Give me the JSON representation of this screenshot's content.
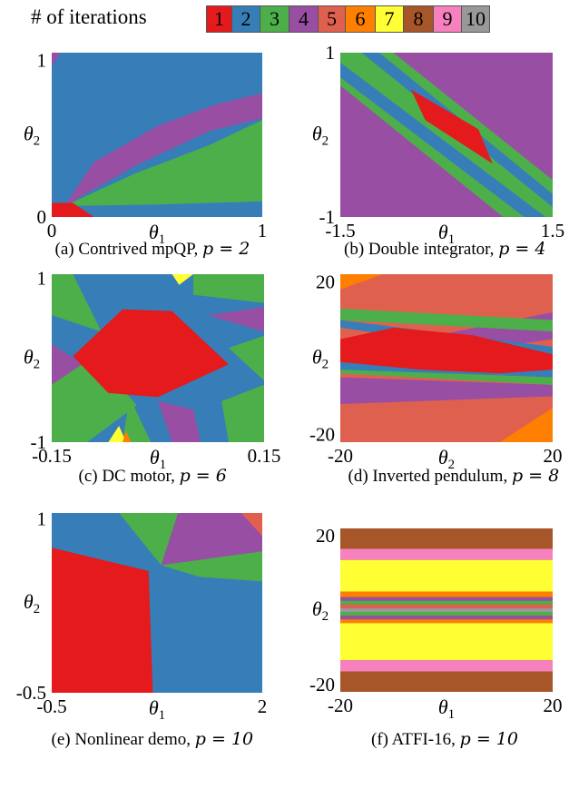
{
  "legend": {
    "title": "# of iterations",
    "items": [
      {
        "label": "1",
        "color": "#e41a1c"
      },
      {
        "label": "2",
        "color": "#377eb8"
      },
      {
        "label": "3",
        "color": "#4daf4a"
      },
      {
        "label": "4",
        "color": "#984ea3"
      },
      {
        "label": "5",
        "color": "#e0604f"
      },
      {
        "label": "6",
        "color": "#ff7f00"
      },
      {
        "label": "7",
        "color": "#ffff33"
      },
      {
        "label": "8",
        "color": "#a65628"
      },
      {
        "label": "9",
        "color": "#f781bf"
      },
      {
        "label": "10",
        "color": "#999999"
      }
    ]
  },
  "chart_data": [
    {
      "type": "heatmap",
      "caption": "(a) Contrived mpQP, ",
      "caption_math": "p = 2",
      "xlabel": "θ1",
      "ylabel": "θ2",
      "xlim": [
        0,
        1
      ],
      "ylim": [
        0,
        1.05
      ],
      "xticks": [
        "0",
        "1"
      ],
      "xtick_values": [
        0,
        1
      ],
      "yticks": [
        "0",
        "1"
      ],
      "ytick_values": [
        0,
        1
      ],
      "background": 2,
      "regions": [
        {
          "iterations": 4,
          "points": [
            [
              0.06,
              0.07
            ],
            [
              0.2,
              0.35
            ],
            [
              0.5,
              0.58
            ],
            [
              0.78,
              0.72
            ],
            [
              1.0,
              0.79
            ],
            [
              1.0,
              0.63
            ],
            [
              0.75,
              0.55
            ],
            [
              0.4,
              0.33
            ]
          ]
        },
        {
          "iterations": 3,
          "points": [
            [
              0.06,
              0.07
            ],
            [
              0.4,
              0.28
            ],
            [
              0.75,
              0.46
            ],
            [
              1.0,
              0.62
            ],
            [
              1.0,
              0.1
            ],
            [
              0.5,
              0.08
            ]
          ]
        },
        {
          "iterations": 1,
          "points": [
            [
              0,
              0
            ],
            [
              0.2,
              0
            ],
            [
              0.1,
              0.09
            ],
            [
              0,
              0.09
            ]
          ]
        },
        {
          "iterations": 4,
          "points": [
            [
              0,
              0.96
            ],
            [
              0.04,
              1.05
            ],
            [
              0,
              1.05
            ]
          ]
        }
      ]
    },
    {
      "type": "heatmap",
      "caption": "(b) Double integrator, ",
      "caption_math": "p = 4",
      "xlabel": "θ1",
      "ylabel": "θ2",
      "xlim": [
        -1.5,
        1.5
      ],
      "ylim": [
        -1,
        1
      ],
      "xticks": [
        "-1.5",
        "1.5"
      ],
      "xtick_values": [
        -1.5,
        1.5
      ],
      "yticks": [
        "1",
        "-1"
      ],
      "ytick_values": [
        1,
        -1
      ],
      "background": 4,
      "regions": [
        {
          "iterations": 3,
          "points": [
            [
              -1.5,
              1
            ],
            [
              -0.75,
              1
            ],
            [
              1.5,
              -0.55
            ],
            [
              1.5,
              -1
            ],
            [
              0.8,
              -1
            ],
            [
              -1.5,
              0.6
            ]
          ]
        },
        {
          "iterations": 2,
          "points": [
            [
              -1.5,
              0.88
            ],
            [
              -1.5,
              0.7
            ],
            [
              1.1,
              -1
            ],
            [
              1.4,
              -1
            ]
          ]
        },
        {
          "iterations": 2,
          "points": [
            [
              -1.2,
              1
            ],
            [
              -0.95,
              1
            ],
            [
              1.5,
              -0.72
            ],
            [
              1.5,
              -0.88
            ]
          ]
        },
        {
          "iterations": 1,
          "points": [
            [
              -0.5,
              0.55
            ],
            [
              0.45,
              0.07
            ],
            [
              0.65,
              -0.35
            ],
            [
              -0.3,
              0.18
            ]
          ]
        }
      ]
    },
    {
      "type": "heatmap",
      "caption": "(c) DC motor, ",
      "caption_math": "p = 6",
      "xlabel": "θ1",
      "ylabel": "θ2",
      "xlim": [
        -0.15,
        0.15
      ],
      "ylim": [
        -1,
        1.05
      ],
      "xticks": [
        "-0.15",
        "0.15"
      ],
      "xtick_values": [
        -0.15,
        0.15
      ],
      "yticks": [
        "1",
        "-1"
      ],
      "ytick_values": [
        1,
        -1
      ],
      "background": 2,
      "regions": [
        {
          "iterations": 3,
          "points": [
            [
              -0.15,
              1.05
            ],
            [
              -0.12,
              1.05
            ],
            [
              -0.08,
              0.35
            ],
            [
              -0.15,
              0.55
            ]
          ]
        },
        {
          "iterations": 3,
          "points": [
            [
              0.05,
              1.05
            ],
            [
              0.15,
              1.05
            ],
            [
              0.15,
              0.7
            ],
            [
              0.05,
              0.8
            ]
          ]
        },
        {
          "iterations": 4,
          "points": [
            [
              -0.15,
              0.2
            ],
            [
              -0.08,
              -0.2
            ],
            [
              -0.15,
              -0.6
            ]
          ]
        },
        {
          "iterations": 3,
          "points": [
            [
              -0.15,
              -0.3
            ],
            [
              -0.09,
              0.05
            ],
            [
              -0.03,
              -0.55
            ],
            [
              -0.1,
              -1
            ],
            [
              -0.15,
              -1
            ]
          ]
        },
        {
          "iterations": 4,
          "points": [
            [
              0.07,
              0.55
            ],
            [
              0.15,
              0.35
            ],
            [
              0.15,
              0.65
            ]
          ]
        },
        {
          "iterations": 3,
          "points": [
            [
              0.1,
              0.15
            ],
            [
              0.15,
              -0.25
            ],
            [
              0.15,
              0.3
            ]
          ]
        },
        {
          "iterations": 4,
          "points": [
            [
              0.0,
              -0.5
            ],
            [
              0.05,
              -0.6
            ],
            [
              0.06,
              -1
            ],
            [
              0.02,
              -1
            ]
          ]
        },
        {
          "iterations": 3,
          "points": [
            [
              0.09,
              -0.5
            ],
            [
              0.15,
              -0.3
            ],
            [
              0.15,
              -1
            ],
            [
              0.1,
              -1
            ]
          ]
        },
        {
          "iterations": 3,
          "points": [
            [
              -0.04,
              -0.45
            ],
            [
              -0.01,
              -1
            ],
            [
              -0.05,
              -1
            ]
          ]
        },
        {
          "iterations": 7,
          "points": [
            [
              0.02,
              1.05
            ],
            [
              0.03,
              0.92
            ],
            [
              0.05,
              1.05
            ]
          ]
        },
        {
          "iterations": 7,
          "points": [
            [
              -0.07,
              -1
            ],
            [
              -0.055,
              -0.8
            ],
            [
              -0.045,
              -1
            ]
          ]
        },
        {
          "iterations": 6,
          "points": [
            [
              -0.05,
              -1
            ],
            [
              -0.045,
              -0.86
            ],
            [
              -0.038,
              -1
            ]
          ]
        },
        {
          "iterations": 1,
          "points": [
            [
              -0.12,
              0.05
            ],
            [
              -0.05,
              0.62
            ],
            [
              0.02,
              0.6
            ],
            [
              0.1,
              -0.05
            ],
            [
              0.0,
              -0.45
            ],
            [
              -0.07,
              -0.4
            ]
          ]
        }
      ]
    },
    {
      "type": "heatmap",
      "caption": "(d) Inverted pendulum, ",
      "caption_math": "p = 8",
      "xlabel": "θ2",
      "ylabel": "θ2",
      "xlim": [
        -20,
        20
      ],
      "ylim": [
        -22,
        22
      ],
      "xticks": [
        "-20",
        "20"
      ],
      "xtick_values": [
        -20,
        20
      ],
      "yticks": [
        "20",
        "-20"
      ],
      "ytick_values": [
        20,
        -20
      ],
      "background": 5,
      "regions": [
        {
          "iterations": 4,
          "points": [
            [
              -20,
              1
            ],
            [
              20,
              12
            ],
            [
              20,
              5
            ],
            [
              -20,
              -3
            ]
          ]
        },
        {
          "iterations": 3,
          "points": [
            [
              -20,
              10
            ],
            [
              20,
              7
            ],
            [
              20,
              10
            ],
            [
              -20,
              13
            ]
          ]
        },
        {
          "iterations": 2,
          "points": [
            [
              -20,
              8
            ],
            [
              20,
              0
            ],
            [
              20,
              3
            ],
            [
              -20,
              10
            ]
          ]
        },
        {
          "iterations": 4,
          "points": [
            [
              -20,
              -5
            ],
            [
              20,
              -7
            ],
            [
              20,
              -10
            ],
            [
              -20,
              -12
            ]
          ]
        },
        {
          "iterations": 3,
          "points": [
            [
              -20,
              -2
            ],
            [
              20,
              -5
            ],
            [
              20,
              -7
            ],
            [
              -20,
              -4
            ]
          ]
        },
        {
          "iterations": 2,
          "points": [
            [
              -20,
              -1
            ],
            [
              20,
              -3
            ],
            [
              20,
              -5
            ],
            [
              -20,
              -3
            ]
          ]
        },
        {
          "iterations": 6,
          "points": [
            [
              -20,
              22
            ],
            [
              -12,
              22
            ],
            [
              -20,
              18
            ]
          ]
        },
        {
          "iterations": 6,
          "points": [
            [
              20,
              -22
            ],
            [
              10,
              -22
            ],
            [
              20,
              -13
            ]
          ]
        },
        {
          "iterations": 1,
          "points": [
            [
              -20,
              5
            ],
            [
              -10,
              8
            ],
            [
              5,
              6
            ],
            [
              20,
              1
            ],
            [
              20,
              -3
            ],
            [
              10,
              -4
            ],
            [
              -5,
              -3
            ],
            [
              -20,
              -1
            ]
          ]
        }
      ]
    },
    {
      "type": "heatmap",
      "caption": "(e) Nonlinear demo, ",
      "caption_math": "p = 10",
      "xlabel": "θ1",
      "ylabel": "θ2",
      "xlim": [
        -0.5,
        2
      ],
      "ylim": [
        -0.5,
        1.05
      ],
      "xticks": [
        "-0.5",
        "2"
      ],
      "xtick_values": [
        -0.5,
        2
      ],
      "yticks": [
        "1",
        "-0.5"
      ],
      "ytick_values": [
        1,
        -0.5
      ],
      "background": 2,
      "regions": [
        {
          "iterations": 3,
          "points": [
            [
              0.3,
              1.05
            ],
            [
              1.0,
              1.05
            ],
            [
              0.8,
              0.6
            ]
          ]
        },
        {
          "iterations": 4,
          "points": [
            [
              1.0,
              1.05
            ],
            [
              2.0,
              1.05
            ],
            [
              2.0,
              0.72
            ],
            [
              0.8,
              0.6
            ]
          ]
        },
        {
          "iterations": 3,
          "points": [
            [
              0.8,
              0.6
            ],
            [
              2.0,
              0.72
            ],
            [
              2.0,
              0.46
            ],
            [
              1.25,
              0.5
            ]
          ]
        },
        {
          "iterations": 5,
          "points": [
            [
              1.75,
              1.05
            ],
            [
              2.0,
              1.05
            ],
            [
              2.0,
              0.85
            ]
          ]
        },
        {
          "iterations": 1,
          "points": [
            [
              -0.5,
              0.75
            ],
            [
              0.65,
              0.55
            ],
            [
              0.7,
              -0.5
            ],
            [
              -0.5,
              -0.5
            ]
          ]
        }
      ]
    },
    {
      "type": "heatmap",
      "caption": "(f) ATFI-16, ",
      "caption_math": "p = 10",
      "xlabel": "θ1",
      "ylabel": "θ2",
      "xlim": [
        -20,
        20
      ],
      "ylim": [
        -22,
        22
      ],
      "xticks": [
        "-20",
        "20"
      ],
      "xtick_values": [
        -20,
        20
      ],
      "yticks": [
        "20",
        "-20"
      ],
      "ytick_values": [
        20,
        -20
      ],
      "background": 8,
      "bands": [
        {
          "iterations": 9,
          "from": 13.5,
          "to": 16.5
        },
        {
          "iterations": 7,
          "from": 5,
          "to": 13.5
        },
        {
          "iterations": 6,
          "from": 3.5,
          "to": 5
        },
        {
          "iterations": 4,
          "from": 2.5,
          "to": 3.5
        },
        {
          "iterations": 3,
          "from": 1.5,
          "to": 2.5
        },
        {
          "iterations": 5,
          "from": 0.5,
          "to": 1.5
        },
        {
          "iterations": 10,
          "from": -0.5,
          "to": 0.5
        },
        {
          "iterations": 3,
          "from": -1.5,
          "to": -0.5
        },
        {
          "iterations": 4,
          "from": -2.5,
          "to": -1.5
        },
        {
          "iterations": 6,
          "from": -3.5,
          "to": -2.5
        },
        {
          "iterations": 7,
          "from": -13.5,
          "to": -3.5
        },
        {
          "iterations": 9,
          "from": -16.5,
          "to": -13.5
        }
      ]
    }
  ]
}
